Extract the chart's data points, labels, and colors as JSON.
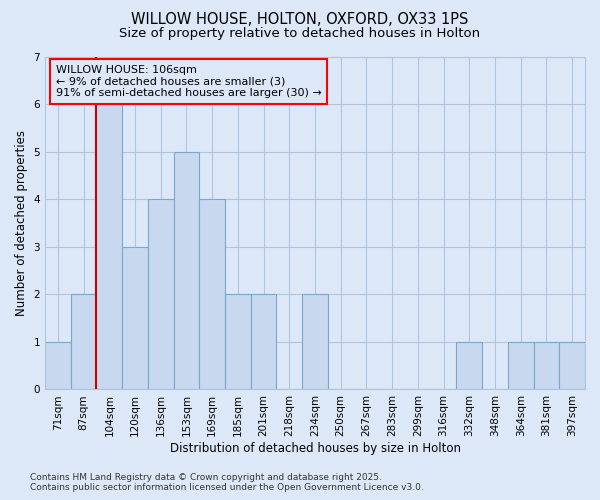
{
  "title1": "WILLOW HOUSE, HOLTON, OXFORD, OX33 1PS",
  "title2": "Size of property relative to detached houses in Holton",
  "xlabel": "Distribution of detached houses by size in Holton",
  "ylabel": "Number of detached properties",
  "categories": [
    "71sqm",
    "87sqm",
    "104sqm",
    "120sqm",
    "136sqm",
    "153sqm",
    "169sqm",
    "185sqm",
    "201sqm",
    "218sqm",
    "234sqm",
    "250sqm",
    "267sqm",
    "283sqm",
    "299sqm",
    "316sqm",
    "332sqm",
    "348sqm",
    "364sqm",
    "381sqm",
    "397sqm"
  ],
  "values": [
    1,
    2,
    6,
    3,
    4,
    5,
    4,
    2,
    2,
    0,
    2,
    0,
    0,
    0,
    0,
    0,
    1,
    0,
    1,
    1,
    1
  ],
  "bar_color": "#c8d8ee",
  "bar_edge_color": "#7aa8cc",
  "red_line_bar_index": 2,
  "red_line_color": "#cc0000",
  "ylim": [
    0,
    7
  ],
  "yticks": [
    0,
    1,
    2,
    3,
    4,
    5,
    6,
    7
  ],
  "annotation_line1": "WILLOW HOUSE: 106sqm",
  "annotation_line2": "← 9% of detached houses are smaller (3)",
  "annotation_line3": "91% of semi-detached houses are larger (30) →",
  "footer1": "Contains HM Land Registry data © Crown copyright and database right 2025.",
  "footer2": "Contains public sector information licensed under the Open Government Licence v3.0.",
  "bg_color": "#dce8f8",
  "plot_bg_color": "#dce8f8",
  "grid_color": "#b0c4de",
  "title_fontsize": 10.5,
  "subtitle_fontsize": 9.5,
  "axis_label_fontsize": 8.5,
  "tick_fontsize": 7.5,
  "annotation_fontsize": 8,
  "footer_fontsize": 6.5
}
